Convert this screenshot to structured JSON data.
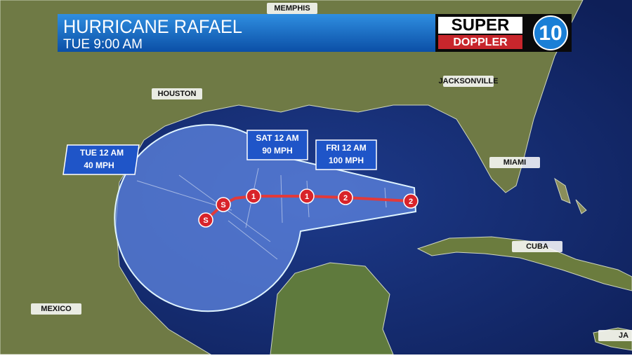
{
  "header": {
    "title": "HURRICANE RAFAEL",
    "time": "TUE 9:00 AM"
  },
  "logo": {
    "top": "SUPER",
    "bottom": "DOPPLER",
    "channel": "10"
  },
  "cities": [
    "MEMPHIS",
    "HOUSTON",
    "JACKSONVILLE",
    "MIAMI",
    "CUBA",
    "MEXICO",
    "JA"
  ],
  "forecast_boxes": [
    {
      "time": "TUE 12 AM",
      "wind": "40 MPH"
    },
    {
      "time": "SAT 12 AM",
      "wind": "90 MPH"
    },
    {
      "time": "FRI 12 AM",
      "wind": "100 MPH"
    }
  ],
  "track_points": [
    "2",
    "2",
    "1",
    "1",
    "S",
    "S"
  ]
}
